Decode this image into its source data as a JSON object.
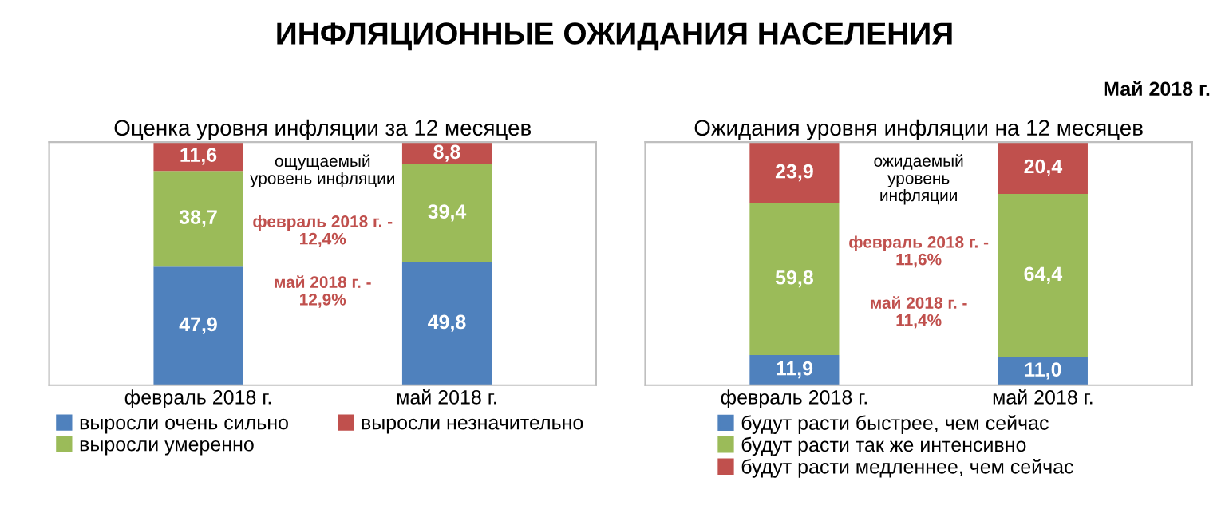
{
  "chart_data": [
    {
      "type": "bar",
      "stacked": true,
      "legend": "bottom",
      "title": "Оценка уровня инфляции за 12 месяцев",
      "categories": [
        "февраль 2018 г.",
        "май 2018 г."
      ],
      "series": [
        {
          "name": "выросли очень сильно",
          "color": "#4f81bd",
          "values": [
            47.9,
            49.8
          ],
          "value_labels": [
            "47,9",
            "49,8"
          ]
        },
        {
          "name": "выросли умеренно",
          "color": "#9bbb59",
          "values": [
            38.7,
            39.4
          ],
          "value_labels": [
            "38,7",
            "39,4"
          ]
        },
        {
          "name": "выросли незначительно",
          "color": "#c0504d",
          "values": [
            11.6,
            8.8
          ],
          "value_labels": [
            "11,6",
            "8,8"
          ]
        }
      ],
      "annotations": [
        "ИНФЛЯЦИОННЫЕ ОЖИДАНИЯ НАСЕЛЕНИЯ",
        "Май 2018 г.",
        "ощущаемый\nуровень инфляции",
        "февраль 2018 г. -\n12,4%",
        "май 2018 г. -\n12,9%"
      ]
    },
    {
      "type": "bar",
      "stacked": true,
      "legend": "bottom",
      "title": "Ожидания уровня инфляции на 12 месяцев",
      "categories": [
        "февраль 2018 г.",
        "май 2018 г."
      ],
      "series": [
        {
          "name": "будут расти быстрее, чем сейчас",
          "color": "#4f81bd",
          "values": [
            11.9,
            11.0
          ],
          "value_labels": [
            "11,9",
            "11,0"
          ]
        },
        {
          "name": "будут расти так же интенсивно",
          "color": "#9bbb59",
          "values": [
            59.8,
            64.4
          ],
          "value_labels": [
            "59,8",
            "64,4"
          ]
        },
        {
          "name": "будут расти медленнее, чем сейчас",
          "color": "#c0504d",
          "values": [
            23.9,
            20.4
          ],
          "value_labels": [
            "23,9",
            "20,4"
          ]
        }
      ],
      "annotations": [
        "ожидаемый\nуровень\nинфляции",
        "февраль 2018 г. -\n11,6%",
        "май 2018 г. -\n11,4%"
      ]
    }
  ]
}
